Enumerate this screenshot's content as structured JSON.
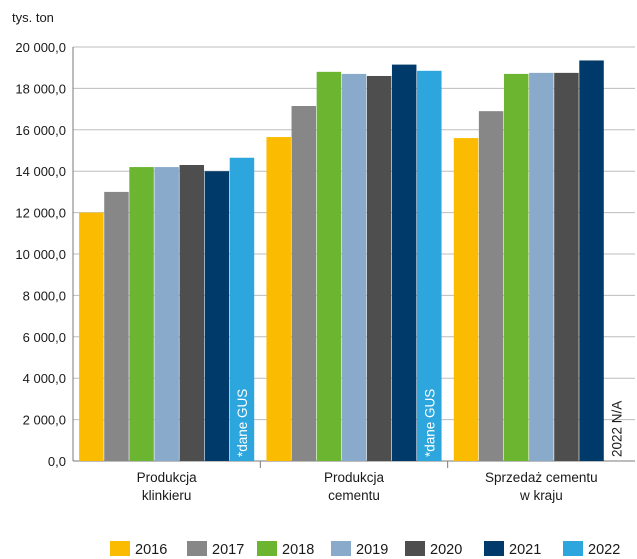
{
  "chart_data": {
    "type": "bar",
    "ylabel": "tys. ton",
    "ylim": [
      0,
      20000
    ],
    "ytick_values": [
      0,
      2000,
      4000,
      6000,
      8000,
      10000,
      12000,
      14000,
      16000,
      18000,
      20000
    ],
    "ytick_labels": [
      "0,0",
      "2 000,0",
      "4 000,0",
      "6 000,0",
      "8 000,0",
      "10 000,0",
      "12 000,0",
      "14 000,0",
      "16 000,0",
      "18 000,0",
      "20 000,0"
    ],
    "grid": "horizontal",
    "legend_position": "bottom",
    "categories": [
      [
        "Produkcja",
        "klinkieru"
      ],
      [
        "Produkcja",
        "cementu"
      ],
      [
        "Sprzedaż cementu",
        "w kraju"
      ]
    ],
    "series": [
      {
        "name": "2016",
        "color": "#fbbb00",
        "values": [
          12000,
          15650,
          15600
        ]
      },
      {
        "name": "2017",
        "color": "#878787",
        "values": [
          13000,
          17150,
          16900
        ]
      },
      {
        "name": "2018",
        "color": "#6cb530",
        "values": [
          14200,
          18800,
          18700
        ]
      },
      {
        "name": "2019",
        "color": "#8aaacb",
        "values": [
          14200,
          18700,
          18750
        ]
      },
      {
        "name": "2020",
        "color": "#4e4e4e",
        "values": [
          14300,
          18600,
          18750
        ]
      },
      {
        "name": "2021",
        "color": "#003a6b",
        "values": [
          14000,
          19150,
          19350
        ]
      },
      {
        "name": "2022",
        "color": "#2ca6dc",
        "values": [
          14650,
          18850,
          null
        ]
      }
    ],
    "bar_annotations": [
      "*dane GUS",
      "*dane GUS",
      "2022 N/A"
    ]
  }
}
